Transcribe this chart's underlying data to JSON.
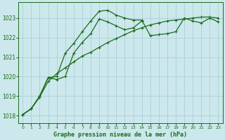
{
  "title": "Graphe pression niveau de la mer (hPa)",
  "bg_color": "#cce8ec",
  "grid_color": "#aacfd6",
  "line_color": "#1a6b1a",
  "xlim": [
    -0.5,
    23.5
  ],
  "ylim": [
    1017.6,
    1023.8
  ],
  "yticks": [
    1018,
    1019,
    1020,
    1021,
    1022,
    1023
  ],
  "xticks": [
    0,
    1,
    2,
    3,
    4,
    5,
    6,
    7,
    8,
    9,
    10,
    11,
    12,
    13,
    14,
    15,
    16,
    17,
    18,
    19,
    20,
    21,
    22,
    23
  ],
  "series1_x": [
    0,
    1,
    2,
    3,
    4,
    5,
    6,
    7,
    8,
    9,
    10,
    11,
    12,
    13,
    14,
    15,
    16,
    17,
    18,
    19,
    20,
    21,
    22,
    23
  ],
  "series1_y": [
    1018.05,
    1018.35,
    1018.95,
    1019.75,
    1020.15,
    1020.45,
    1020.75,
    1021.05,
    1021.25,
    1021.5,
    1021.75,
    1021.95,
    1022.15,
    1022.35,
    1022.5,
    1022.65,
    1022.75,
    1022.85,
    1022.9,
    1022.95,
    1023.0,
    1023.05,
    1023.05,
    1023.0
  ],
  "series2_x": [
    0,
    1,
    2,
    3,
    4,
    5,
    6,
    7,
    8,
    9,
    10,
    11,
    12,
    13,
    14,
    15,
    16,
    17,
    18,
    19,
    20,
    21,
    22,
    23
  ],
  "series2_y": [
    1018.05,
    1018.35,
    1019.0,
    1019.95,
    1020.0,
    1021.2,
    1021.7,
    1022.3,
    1022.85,
    1023.35,
    1023.4,
    1023.15,
    1023.0,
    1022.9,
    1022.9,
    1022.1,
    1022.15,
    1022.2,
    1022.3,
    1023.0,
    1022.85,
    1022.75,
    1023.0,
    1022.8
  ],
  "series3_x": [
    0,
    1,
    2,
    3,
    4,
    5,
    6,
    7,
    8,
    9,
    10,
    11,
    12,
    13,
    14
  ],
  "series3_y": [
    1018.05,
    1018.35,
    1019.0,
    1019.95,
    1019.85,
    1020.0,
    1021.2,
    1021.75,
    1022.2,
    1022.95,
    1022.8,
    1022.6,
    1022.4,
    1022.5,
    1022.85
  ]
}
